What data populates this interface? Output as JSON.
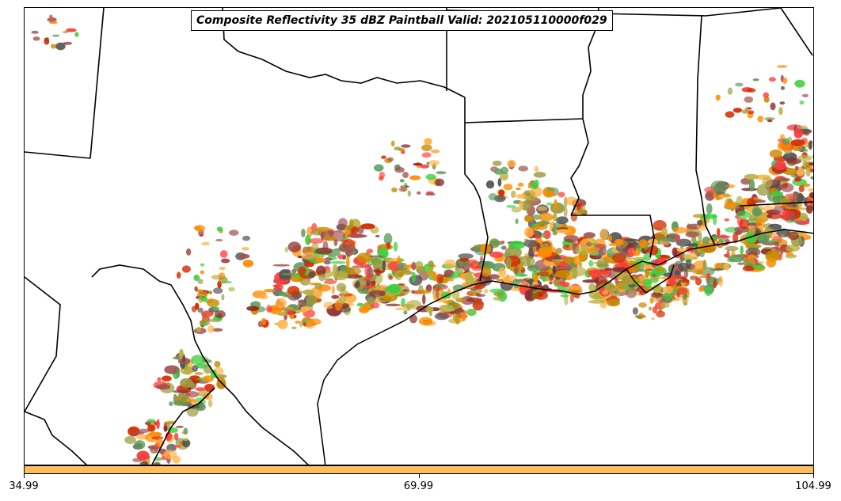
{
  "map": {
    "title": "Composite Reflectivity 35 dBZ Paintball Valid: 202105110000f029",
    "projection": "regional",
    "region_features": [
      "state-borders",
      "coastline",
      "rivers"
    ],
    "member_colors": [
      "#ff3b3b",
      "#d42a00",
      "#ff8c00",
      "#ffb347",
      "#c98a00",
      "#a05050",
      "#9a9a40",
      "#b8b040",
      "#3ccf3c",
      "#5a9a5a",
      "#505050",
      "#8b2a2a"
    ]
  },
  "colorbar": {
    "fill_color": "#ffbf5e",
    "ticks": [
      {
        "label": "34.99",
        "fraction": 0.0
      },
      {
        "label": "69.99",
        "fraction": 0.5
      },
      {
        "label": "104.99",
        "fraction": 1.0
      }
    ]
  }
}
